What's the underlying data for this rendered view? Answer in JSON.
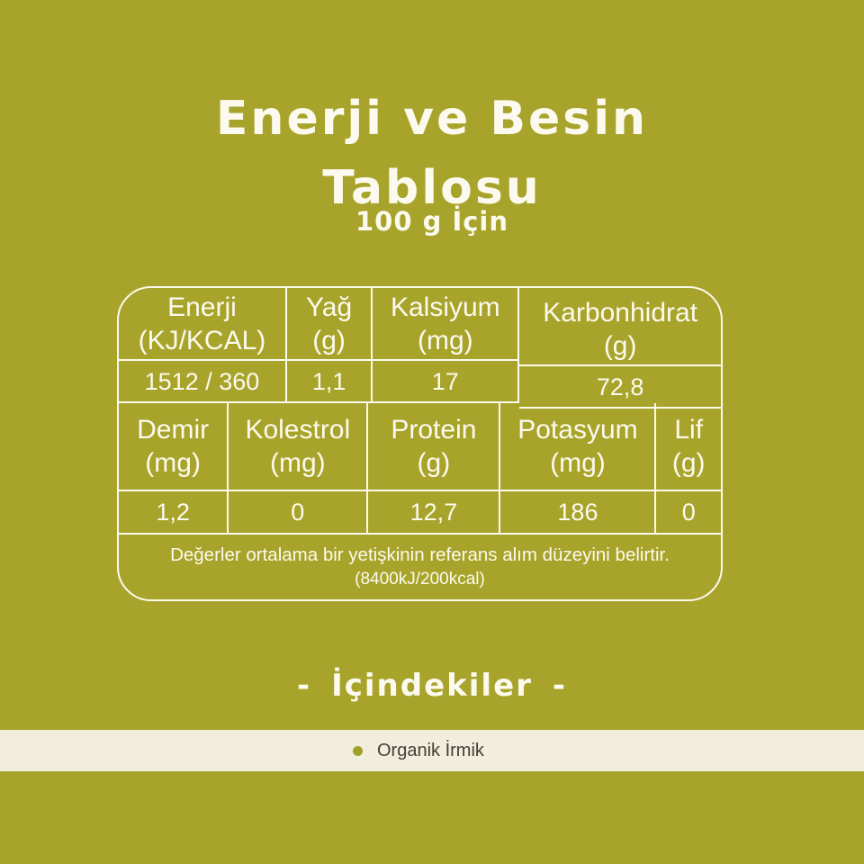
{
  "header": {
    "title_line1": "Enerji ve Besin",
    "title_line2": "Tablosu",
    "subtitle": "100 g İçin"
  },
  "nutrition_table": {
    "top_headers": [
      "Enerji\n(KJ/KCAL)",
      "Yağ\n(g)",
      "Kalsiyum\n(mg)",
      "Karbonhidrat\n(g)"
    ],
    "top_values": [
      "1512 / 360",
      "1,1",
      "17",
      "72,8"
    ],
    "bottom_headers": [
      "Demir\n(mg)",
      "Kolestrol\n(mg)",
      "Protein\n(g)",
      "Potasyum\n(mg)",
      "Lif\n(g)"
    ],
    "bottom_values": [
      "1,2",
      "0",
      "12,7",
      "186",
      "0"
    ],
    "footnote_line1": "Değerler ortalama bir yetişkinin referans alım düzeyini belirtir.",
    "footnote_line2": "(8400kJ/200kcal)"
  },
  "ingredients": {
    "dash_left": "-",
    "heading": "İçindekiler",
    "dash_right": "-",
    "items": [
      {
        "label": "Organik İrmik"
      }
    ]
  },
  "colors": {
    "background": "#a8a42b",
    "text": "#fcfaee",
    "band_background": "#f1eedd",
    "band_text": "#443e33",
    "bullet": "#9fa02b"
  }
}
